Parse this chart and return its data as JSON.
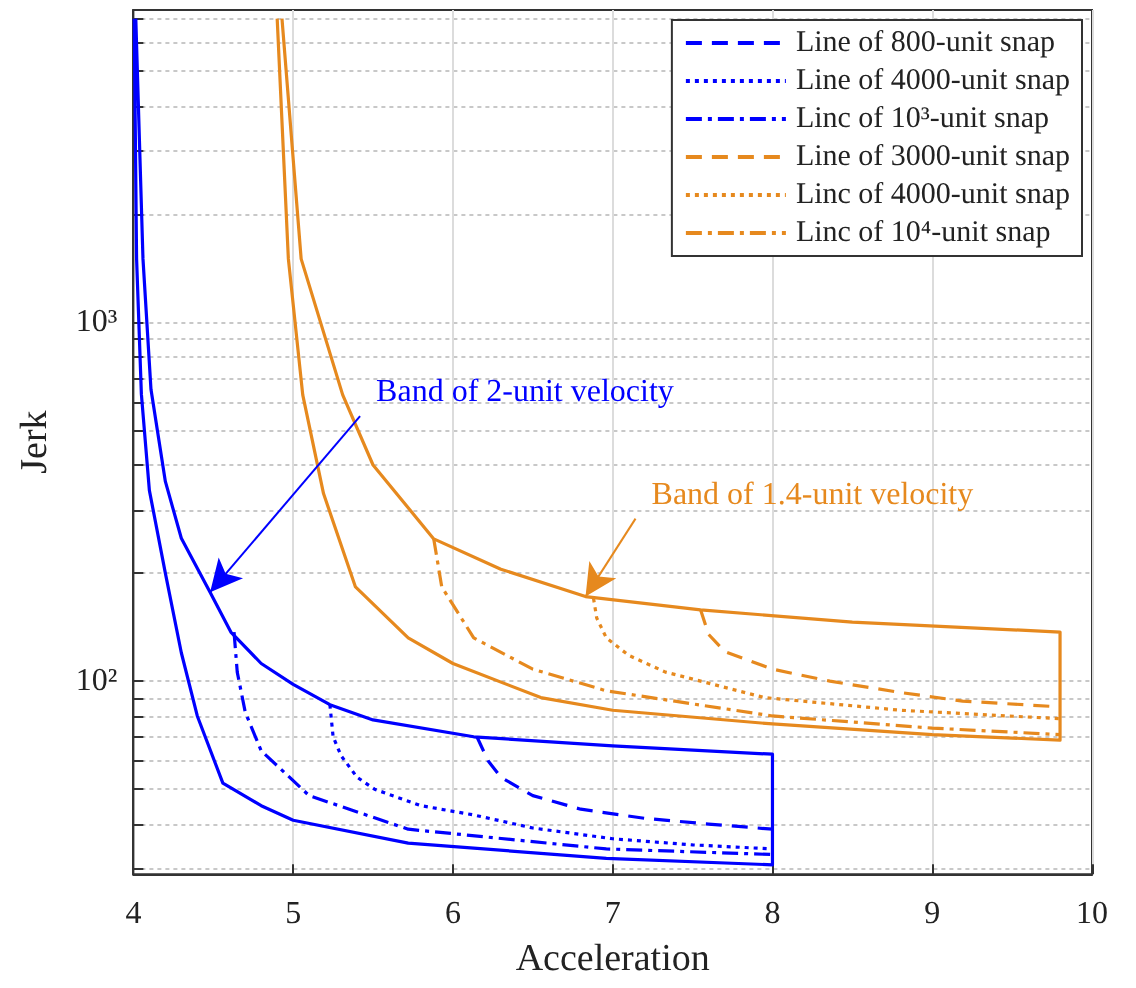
{
  "chart_data": {
    "type": "line",
    "xlabel": "Acceleration",
    "ylabel": "Jerk",
    "log": "y",
    "grid": true,
    "marker": "none",
    "legend": "top right",
    "xlim": [
      4,
      10
    ],
    "xticks": [
      4,
      5,
      6,
      7,
      8,
      9,
      10
    ],
    "ylim": [
      29,
      7400
    ],
    "yticks": [
      {
        "value": 30,
        "label": null
      },
      {
        "value": 40,
        "label": null
      },
      {
        "value": 50,
        "label": null
      },
      {
        "value": 60,
        "label": null
      },
      {
        "value": 70,
        "label": null
      },
      {
        "value": 80,
        "label": null
      },
      {
        "value": 90,
        "label": null
      },
      {
        "value": 100,
        "label": "10²"
      },
      {
        "value": 200,
        "label": null
      },
      {
        "value": 300,
        "label": null
      },
      {
        "value": 400,
        "label": null
      },
      {
        "value": 500,
        "label": null
      },
      {
        "value": 600,
        "label": null
      },
      {
        "value": 700,
        "label": null
      },
      {
        "value": 800,
        "label": null
      },
      {
        "value": 900,
        "label": null
      },
      {
        "value": 1000,
        "label": "10³"
      },
      {
        "value": 2000,
        "label": null
      },
      {
        "value": 3000,
        "label": null
      },
      {
        "value": 4000,
        "label": null
      },
      {
        "value": 5000,
        "label": null
      },
      {
        "value": 6000,
        "label": null
      },
      {
        "value": 7000,
        "label": null
      }
    ],
    "annotations": [
      {
        "text": "Band of 2-unit velocity",
        "x": 4.48,
        "y": 177
      },
      {
        "text": "Band of 1.4-unit velocity",
        "x": 6.83,
        "y": 172
      }
    ],
    "series": [
      {
        "color": "#0000ff",
        "line_style": "solid",
        "x": [
          4.015,
          4.06,
          4.11,
          4.2,
          4.3,
          4.48,
          4.61,
          4.8,
          5.0,
          5.23,
          5.5,
          6.13,
          7.0,
          8.0,
          8.0,
          6.96,
          5.72,
          5.0,
          4.8,
          4.56,
          4.4,
          4.3,
          4.2,
          4.1,
          4.05,
          4.02,
          4.005
        ],
        "values": [
          7000,
          1500,
          650,
          360,
          250,
          177,
          137,
          112,
          98,
          86,
          78,
          70,
          66,
          62.6,
          30.8,
          32.1,
          35.4,
          41,
          45,
          52,
          80,
          120,
          200,
          340,
          630,
          1500,
          7000
        ]
      },
      {
        "color": "#e6891e",
        "line_style": "solid",
        "x": [
          4.93,
          5.05,
          5.31,
          5.5,
          5.88,
          6.3,
          6.83,
          7.55,
          8.5,
          9.8,
          9.8,
          9,
          8,
          7,
          6.55,
          6.0,
          5.72,
          5.39,
          5.19,
          5.06,
          4.97,
          4.9
        ],
        "values": [
          7000,
          1500,
          627,
          400,
          249,
          205,
          172,
          158,
          146,
          137,
          68.5,
          71,
          76,
          83,
          90,
          112,
          132,
          183,
          333,
          627,
          1500,
          7000
        ]
      },
      {
        "name": "Line of 800-unit snap",
        "color": "#0000ff",
        "line_style": "dashed",
        "x": [
          6.15,
          6.22,
          6.3,
          6.5,
          6.8,
          7.2,
          7.6,
          8.0
        ],
        "values": [
          70,
          60,
          54,
          48,
          44,
          41.5,
          40,
          38.7
        ]
      },
      {
        "name": "Line of 4000-unit snap",
        "color": "#0000ff",
        "line_style": "dotted",
        "x": [
          5.23,
          5.25,
          5.3,
          5.4,
          5.51,
          5.8,
          6.13,
          6.5,
          7.0,
          7.5,
          8.0
        ],
        "values": [
          86,
          70,
          62,
          54,
          50,
          45,
          42.4,
          39,
          36.4,
          35,
          34.1
        ]
      },
      {
        "name": "Linc of 10³-unit snap",
        "color": "#0000ff",
        "line_style": "dashdot",
        "x": [
          4.63,
          4.65,
          4.7,
          4.8,
          5.1,
          5.72,
          6.96,
          8.0
        ],
        "values": [
          137,
          106,
          82,
          64,
          48,
          38.7,
          34.1,
          32.9
        ]
      },
      {
        "name": "Line of 3000-unit snap",
        "color": "#e6891e",
        "line_style": "dashed",
        "x": [
          7.55,
          7.6,
          7.7,
          8.0,
          8.36,
          8.8,
          9.19,
          9.8
        ],
        "values": [
          158,
          135,
          121,
          108,
          100,
          93,
          88,
          84.8
        ]
      },
      {
        "name": "Linc of 4000-unit snap",
        "color": "#e6891e",
        "line_style": "dotted",
        "x": [
          6.88,
          6.9,
          6.96,
          7.1,
          7.33,
          7.95,
          8.8,
          9.8
        ],
        "values": [
          170,
          150,
          132,
          118,
          106,
          90,
          83,
          78.6
        ]
      },
      {
        "name": "Linc of 10⁴-unit snap",
        "color": "#e6891e",
        "line_style": "dashdot",
        "x": [
          5.88,
          5.93,
          6.13,
          6.5,
          6.96,
          8.0,
          9.0,
          9.8
        ],
        "values": [
          249,
          183,
          132,
          108,
          94,
          80,
          74,
          71
        ]
      }
    ]
  }
}
